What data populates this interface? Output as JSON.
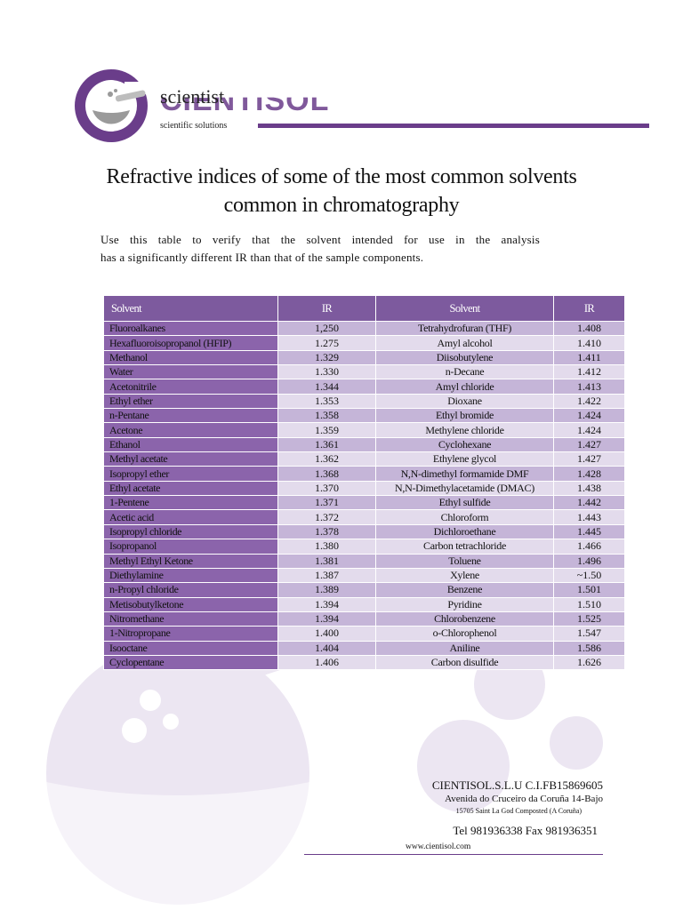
{
  "logo": {
    "word": "scientist",
    "ghost_word": "CIENTISOL",
    "tagline": "scientific solutions",
    "colors": {
      "brand_purple": "#6a3d8a",
      "watermark": "#ece6f2"
    }
  },
  "title_line1": "Refractive indices of some of the most common solvents",
  "title_line2": "common in chromatography",
  "intro_line1": "Use this table to verify that the solvent intended for use in the analysis",
  "intro_line2": "has a significantly different IR than that of the sample components.",
  "table": {
    "headers": [
      "Solvent",
      "IR",
      "Solvent",
      "IR"
    ],
    "rows": [
      [
        "Fluoroalkanes",
        "1,250",
        "Tetrahydrofuran (THF)",
        "1.408"
      ],
      [
        "Hexafluoroisopropanol (HFIP)",
        "1.275",
        "Amyl alcohol",
        "1.410"
      ],
      [
        "Methanol",
        "1.329",
        "Diisobutylene",
        "1.411"
      ],
      [
        "Water",
        "1.330",
        "n-Decane",
        "1.412"
      ],
      [
        "Acetonitrile",
        "1.344",
        "Amyl chloride",
        "1.413"
      ],
      [
        "Ethyl ether",
        "1.353",
        "Dioxane",
        "1.422"
      ],
      [
        "n-Pentane",
        "1.358",
        "Ethyl bromide",
        "1.424"
      ],
      [
        "Acetone",
        "1.359",
        "Methylene chloride",
        "1.424"
      ],
      [
        "Ethanol",
        "1.361",
        "Cyclohexane",
        "1.427"
      ],
      [
        "Methyl acetate",
        "1.362",
        "Ethylene glycol",
        "1.427"
      ],
      [
        "Isopropyl ether",
        "1.368",
        "N,N-dimethyl formamide DMF",
        "1.428"
      ],
      [
        "Ethyl acetate",
        "1.370",
        "N,N-Dimethylacetamide (DMAC)",
        "1.438"
      ],
      [
        "1-Pentene",
        "1.371",
        "Ethyl sulfide",
        "1.442"
      ],
      [
        "Acetic acid",
        "1.372",
        "Chloroform",
        "1.443"
      ],
      [
        "Isopropyl chloride",
        "1.378",
        "Dichloroethane",
        "1.445"
      ],
      [
        "Isopropanol",
        "1.380",
        "Carbon tetrachloride",
        "1.466"
      ],
      [
        "Methyl Ethyl Ketone",
        "1.381",
        "Toluene",
        "1.496"
      ],
      [
        "Diethylamine",
        "1.387",
        "Xylene",
        "~1.50"
      ],
      [
        "n-Propyl chloride",
        "1.389",
        "Benzene",
        "1.501"
      ],
      [
        "Metisobutylketone",
        "1.394",
        "Pyridine",
        "1.510"
      ],
      [
        "Nitromethane",
        "1.394",
        "Chlorobenzene",
        "1.525"
      ],
      [
        "1-Nitropropane",
        "1.400",
        "o-Chlorophenol",
        "1.547"
      ],
      [
        "Isooctane",
        "1.404",
        "Aniline",
        "1.586"
      ],
      [
        "Cyclopentane",
        "1.406",
        "Carbon disulfide",
        "1.626"
      ]
    ]
  },
  "contact": {
    "company": "CIENTISOL.S.L.U C.I.FB15869605",
    "address": "Avenida do Cruceiro da Coruña 14-Bajo",
    "city": "15705 Saint La God Composted (A Coruña)",
    "phone": "Tel 981936338 Fax 981936351",
    "website": "www.cientisol.com"
  }
}
